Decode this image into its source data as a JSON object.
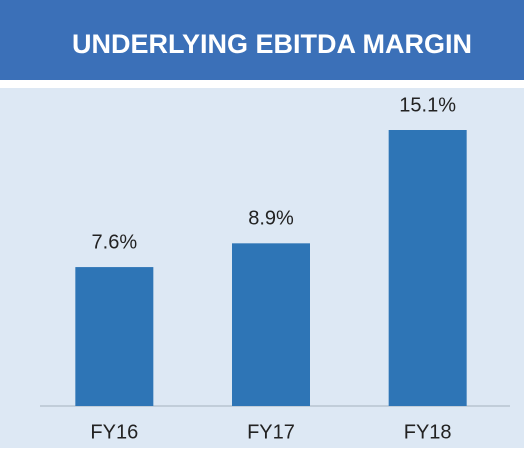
{
  "chart_data": {
    "type": "bar",
    "title": "UNDERLYING EBITDA MARGIN",
    "categories": [
      "FY16",
      "FY17",
      "FY18"
    ],
    "values": [
      7.6,
      8.9,
      15.1
    ],
    "value_labels": [
      "7.6%",
      "8.9%",
      "15.1%"
    ],
    "color": "#2e75b6"
  }
}
